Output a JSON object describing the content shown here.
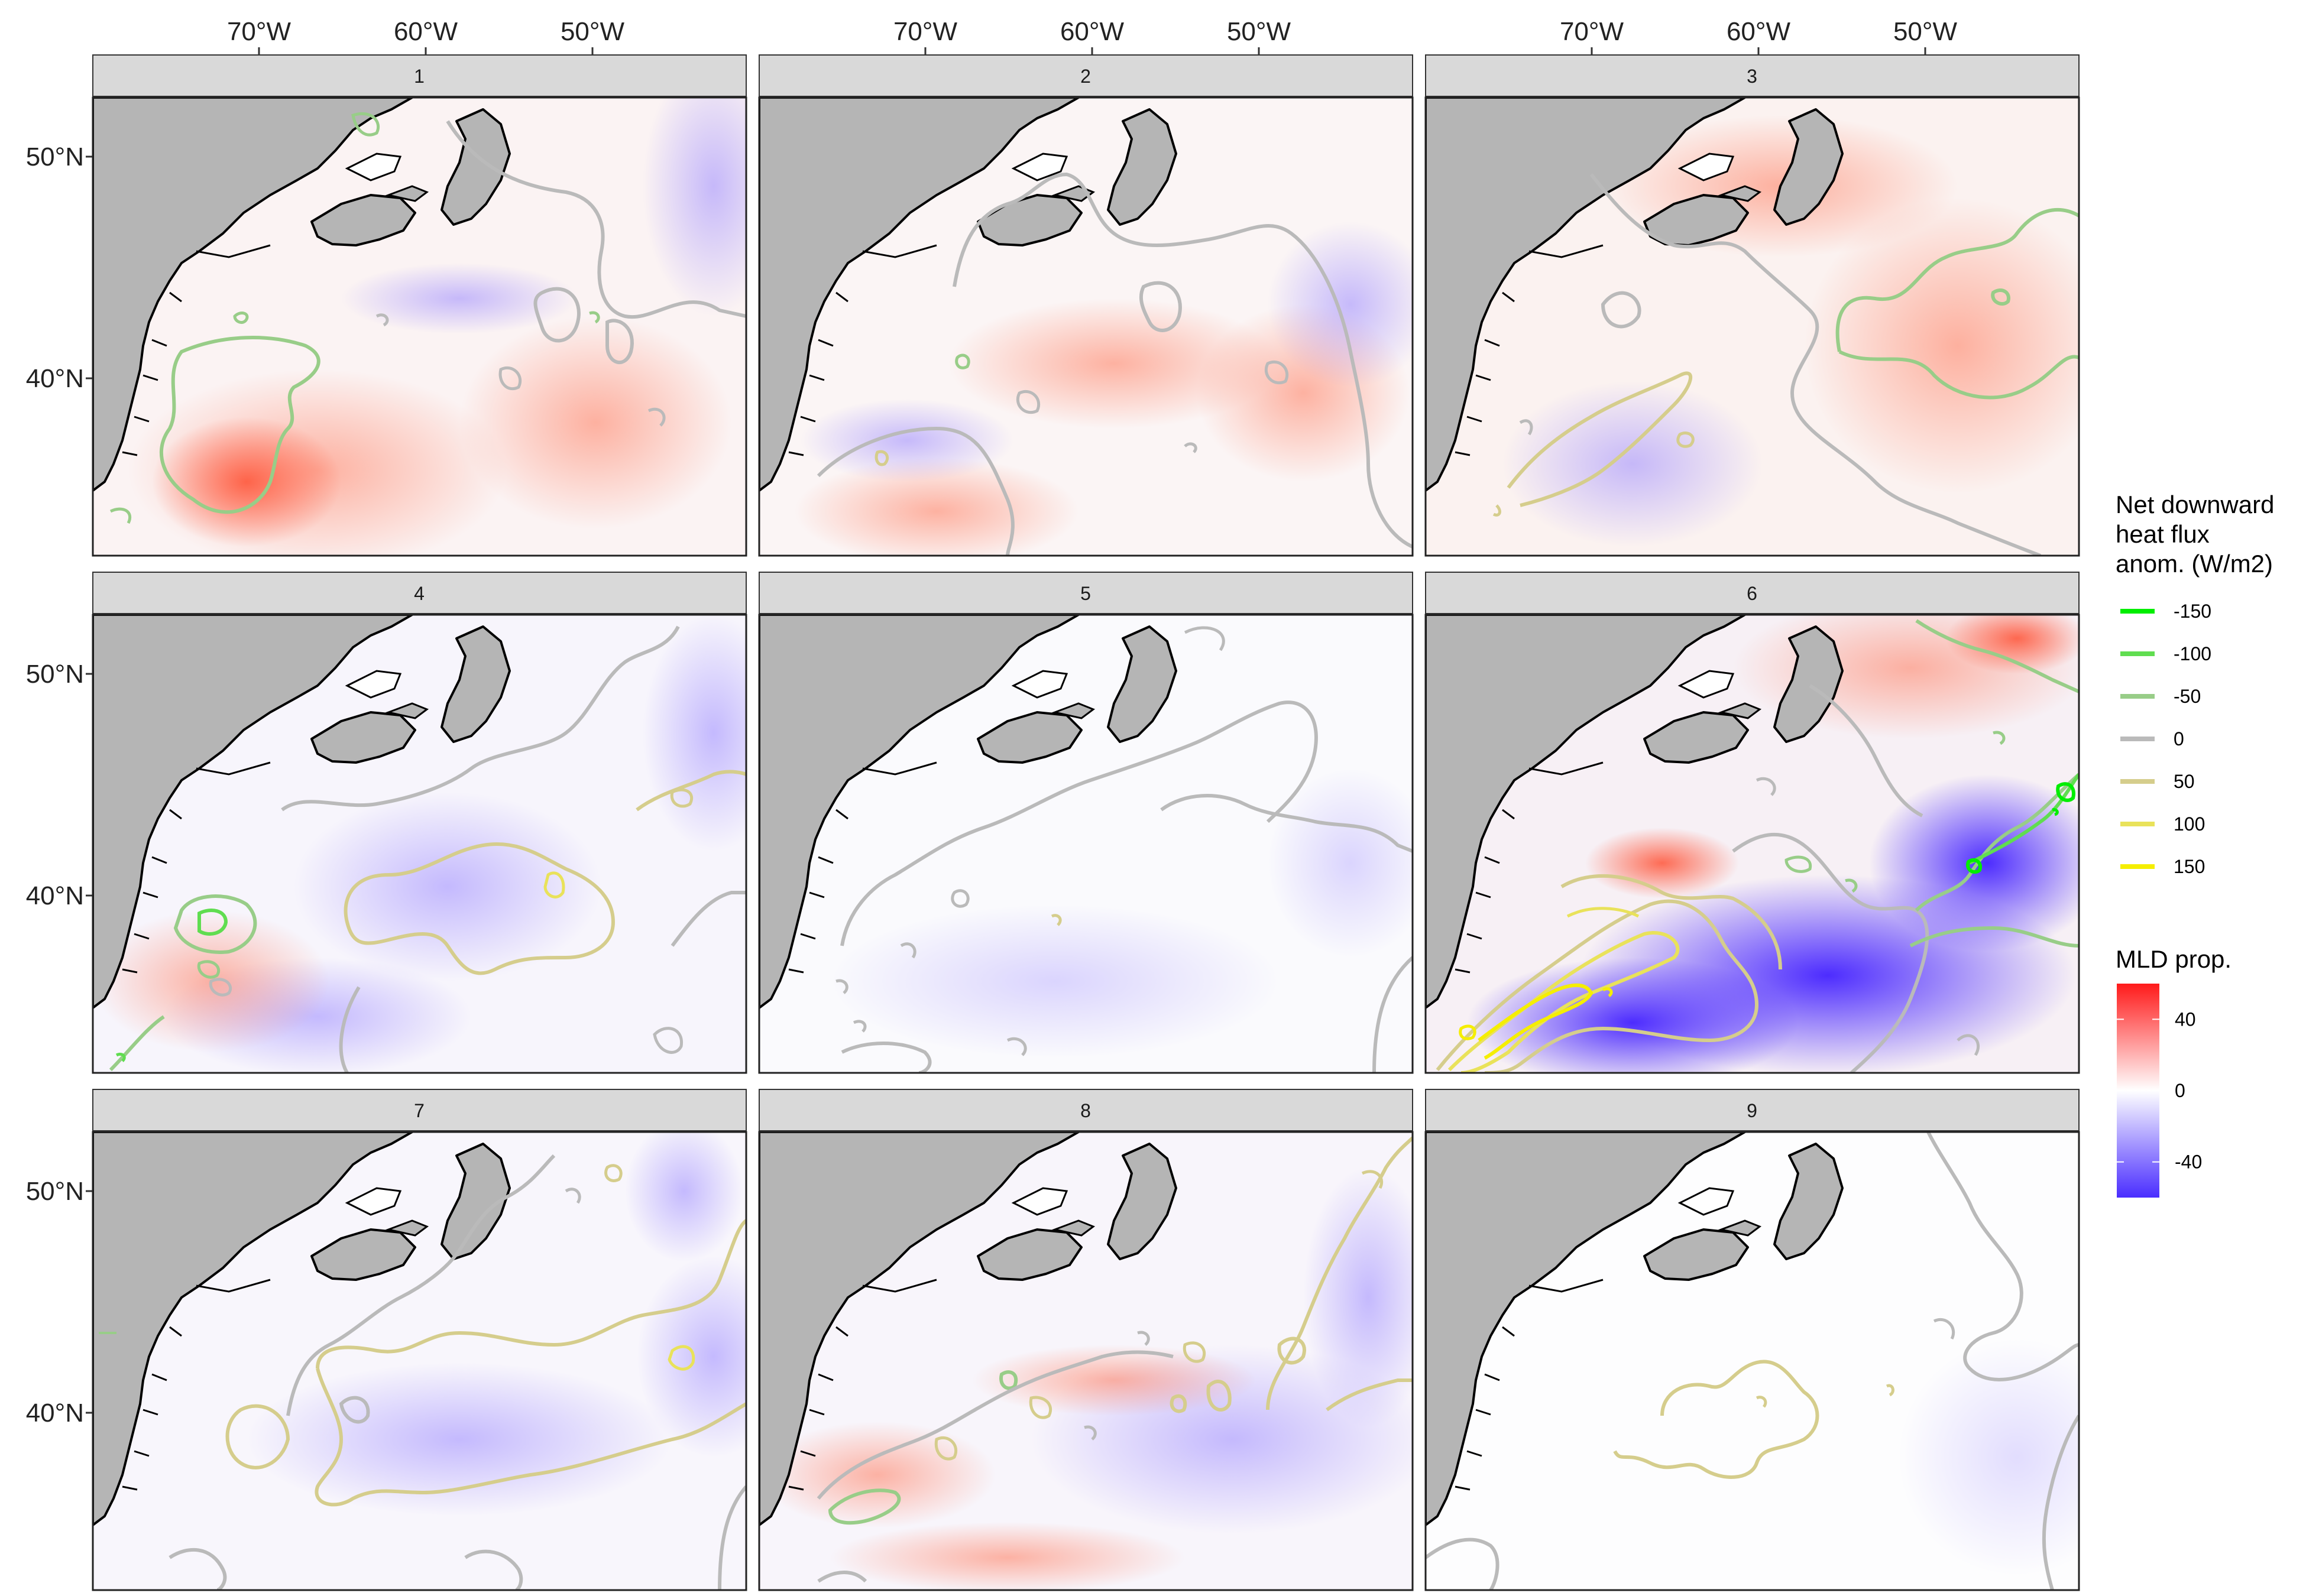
{
  "figure": {
    "x_axis_labels": [
      "70°W",
      "60°W",
      "50°W"
    ],
    "y_axis_labels": [
      "50°N",
      "40°N"
    ],
    "panels": [
      {
        "label": "1",
        "shading": "mixed-positive",
        "has_green_south": true
      },
      {
        "label": "2",
        "shading": "mixed-positive",
        "has_green_south": false
      },
      {
        "label": "3",
        "shading": "mixed-positive",
        "has_green_east": true
      },
      {
        "label": "4",
        "shading": "mixed-negative",
        "has_green_south": true
      },
      {
        "label": "5",
        "shading": "near-zero",
        "has_green_south": false
      },
      {
        "label": "6",
        "shading": "strong-negative",
        "has_green_east": true
      },
      {
        "label": "7",
        "shading": "mixed-negative",
        "has_green_south": false
      },
      {
        "label": "8",
        "shading": "mixed-negative",
        "has_green_south": true
      },
      {
        "label": "9",
        "shading": "near-zero",
        "has_green_south": false
      }
    ]
  },
  "colors": {
    "land": "#b5b5b5",
    "coast": "#000000",
    "strip_bg": "#d9d9d9",
    "ocean_neutral": "#ffffff",
    "pos": "#ff3b24",
    "neg": "#5533ff"
  },
  "legend": {
    "contour": {
      "title_lines": [
        "Net downward",
        "heat flux",
        "anom. (W/m2)"
      ],
      "items": [
        {
          "label": "-150",
          "color": "#00ee00"
        },
        {
          "label": "-100",
          "color": "#60dd50"
        },
        {
          "label": "-50",
          "color": "#98cd88"
        },
        {
          "label": "0",
          "color": "#bababa"
        },
        {
          "label": "50",
          "color": "#d5cd8c"
        },
        {
          "label": "100",
          "color": "#e9e25a"
        },
        {
          "label": "150",
          "color": "#f5ee00"
        }
      ]
    },
    "colorbar": {
      "title": "MLD prop.",
      "ticks": [
        {
          "label": "40",
          "value": 40
        },
        {
          "label": "0",
          "value": 0
        },
        {
          "label": "-40",
          "value": -40
        }
      ],
      "min": -60,
      "max": 60
    }
  }
}
